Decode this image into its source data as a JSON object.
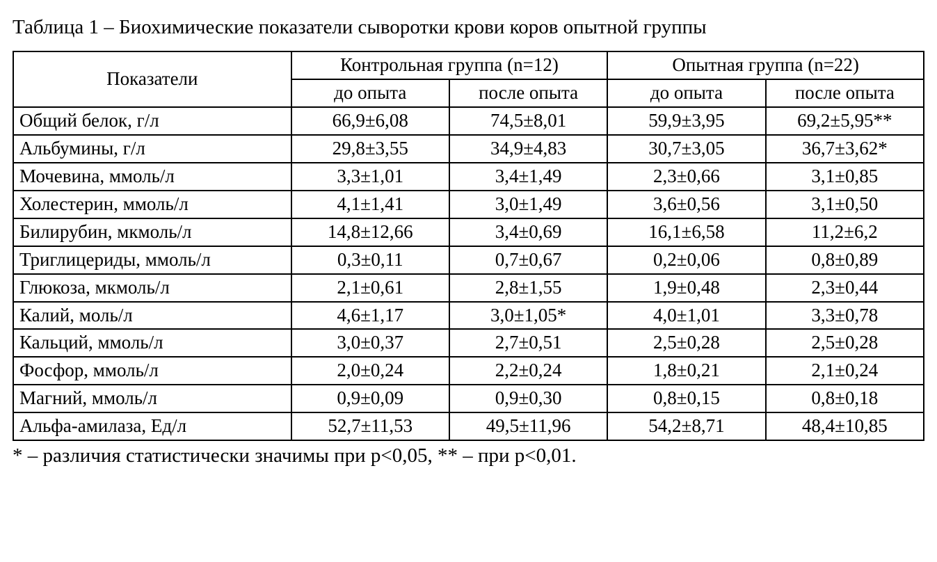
{
  "caption": "Таблица 1 – Биохимические показатели сыворотки крови коров опытной группы",
  "header": {
    "indicators": "Показатели",
    "control_group": "Контрольная группа (n=12)",
    "experimental_group": "Опытная группа (n=22)",
    "before": "до опыта",
    "after": "после опыта",
    "after_wrapped": "после опыта"
  },
  "rows": [
    {
      "label": "Общий белок, г/л",
      "c_before": "66,9±6,08",
      "c_after": "74,5±8,01",
      "e_before": "59,9±3,95",
      "e_after": "69,2±5,95**"
    },
    {
      "label": "Альбумины, г/л",
      "c_before": "29,8±3,55",
      "c_after": "34,9±4,83",
      "e_before": "30,7±3,05",
      "e_after": "36,7±3,62*"
    },
    {
      "label": "Мочевина, ммоль/л",
      "c_before": "3,3±1,01",
      "c_after": "3,4±1,49",
      "e_before": "2,3±0,66",
      "e_after": "3,1±0,85"
    },
    {
      "label": "Холестерин, ммоль/л",
      "c_before": "4,1±1,41",
      "c_after": "3,0±1,49",
      "e_before": "3,6±0,56",
      "e_after": "3,1±0,50"
    },
    {
      "label": "Билирубин, мкмоль/л",
      "c_before": "14,8±12,66",
      "c_after": "3,4±0,69",
      "e_before": "16,1±6,58",
      "e_after": "11,2±6,2"
    },
    {
      "label": "Триглицериды, ммоль/л",
      "c_before": "0,3±0,11",
      "c_after": "0,7±0,67",
      "e_before": "0,2±0,06",
      "e_after": "0,8±0,89"
    },
    {
      "label": "Глюкоза, мкмоль/л",
      "c_before": "2,1±0,61",
      "c_after": "2,8±1,55",
      "e_before": "1,9±0,48",
      "e_after": "2,3±0,44"
    },
    {
      "label": "Калий, моль/л",
      "c_before": "4,6±1,17",
      "c_after": "3,0±1,05*",
      "e_before": "4,0±1,01",
      "e_after": "3,3±0,78"
    },
    {
      "label": "Кальций, ммоль/л",
      "c_before": "3,0±0,37",
      "c_after": "2,7±0,51",
      "e_before": "2,5±0,28",
      "e_after": "2,5±0,28"
    },
    {
      "label": "Фосфор, ммоль/л",
      "c_before": "2,0±0,24",
      "c_after": "2,2±0,24",
      "e_before": "1,8±0,21",
      "e_after": "2,1±0,24"
    },
    {
      "label": "Магний, ммоль/л",
      "c_before": "0,9±0,09",
      "c_after": "0,9±0,30",
      "e_before": "0,8±0,15",
      "e_after": "0,8±0,18"
    },
    {
      "label": "Альфа-амилаза, Ед/л",
      "c_before": "52,7±11,53",
      "c_after": "49,5±11,96",
      "e_before": "54,2±8,71",
      "e_after": "48,4±10,85"
    }
  ],
  "footnote": "* – различия статистически значимы при p<0,05, ** –  при p<0,01."
}
